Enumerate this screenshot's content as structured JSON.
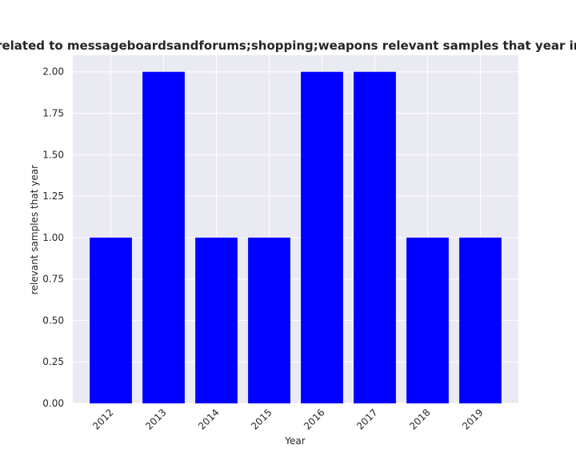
{
  "chart_data": {
    "type": "bar",
    "title": "are related to messageboardsandforums;shopping;weapons relevant samples that year in priva",
    "xlabel": "Year",
    "ylabel": "relevant samples that year",
    "categories": [
      "2012",
      "2013",
      "2014",
      "2015",
      "2016",
      "2017",
      "2018",
      "2019"
    ],
    "values": [
      1,
      2,
      1,
      1,
      2,
      2,
      1,
      1
    ],
    "ylim": [
      0,
      2.1
    ],
    "yticks": [
      "0.00",
      "0.25",
      "0.50",
      "0.75",
      "1.00",
      "1.25",
      "1.50",
      "1.75",
      "2.00"
    ],
    "bar_color": "#0000ff",
    "background_color": "#eaeaf2",
    "grid": true,
    "legend": "none"
  }
}
